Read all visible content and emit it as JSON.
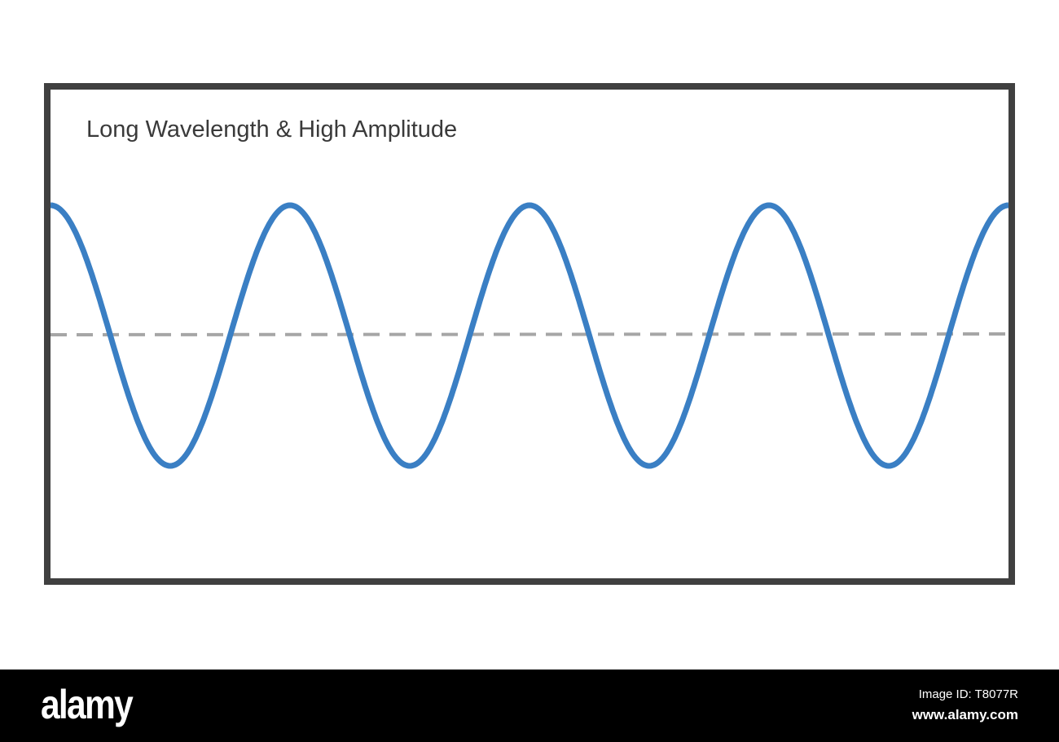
{
  "diagram": {
    "title": "Long Wavelength & High Amplitude",
    "wave": {
      "type": "cosine",
      "cycles": 4,
      "color": "#3a7fc4"
    },
    "baseline": {
      "style": "dashed",
      "color": "#a6a6a6"
    },
    "frame_color": "#404040"
  },
  "watermark": {
    "logo": "alamy",
    "image_id": "Image ID: T8077R",
    "site": "www.alamy.com"
  }
}
